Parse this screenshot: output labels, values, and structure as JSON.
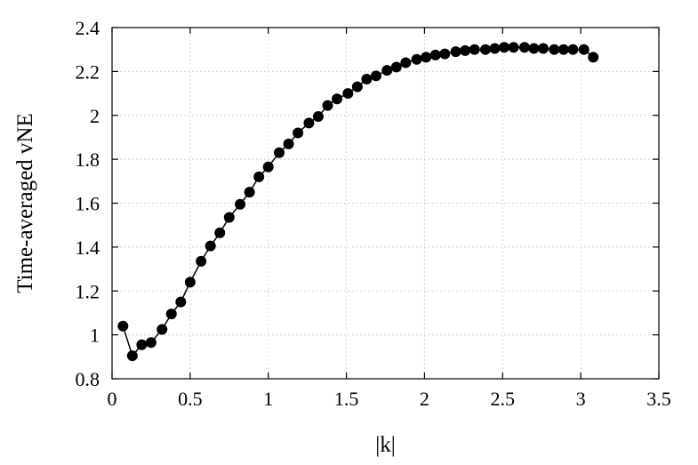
{
  "chart_data": {
    "type": "line",
    "title": "",
    "xlabel": "|k|",
    "ylabel": "Time-averaged vNE",
    "xlim": [
      0,
      3.5
    ],
    "ylim": [
      0.8,
      2.4
    ],
    "xticks": [
      0,
      0.5,
      1,
      1.5,
      2,
      2.5,
      3,
      3.5
    ],
    "xtick_labels": [
      "0",
      "0.5",
      "1",
      "1.5",
      "2",
      "2.5",
      "3",
      "3.5"
    ],
    "yticks": [
      0.8,
      1,
      1.2,
      1.4,
      1.6,
      1.8,
      2,
      2.2,
      2.4
    ],
    "ytick_labels": [
      "0.8",
      "1",
      "1.2",
      "1.4",
      "1.6",
      "1.8",
      "2",
      "2.2",
      "2.4"
    ],
    "grid": true,
    "legend": "none",
    "marker": "filled-circle",
    "series": [
      {
        "color": "#000000",
        "x": [
          0.07,
          0.13,
          0.19,
          0.25,
          0.32,
          0.38,
          0.44,
          0.5,
          0.57,
          0.63,
          0.69,
          0.75,
          0.82,
          0.88,
          0.94,
          1.0,
          1.07,
          1.13,
          1.19,
          1.26,
          1.32,
          1.38,
          1.44,
          1.51,
          1.57,
          1.63,
          1.69,
          1.76,
          1.82,
          1.88,
          1.95,
          2.01,
          2.07,
          2.13,
          2.2,
          2.26,
          2.32,
          2.39,
          2.45,
          2.51,
          2.57,
          2.64,
          2.7,
          2.76,
          2.83,
          2.89,
          2.95,
          3.02,
          3.08
        ],
        "y": [
          1.04,
          0.905,
          0.955,
          0.965,
          1.025,
          1.095,
          1.15,
          1.24,
          1.335,
          1.405,
          1.465,
          1.535,
          1.595,
          1.65,
          1.72,
          1.765,
          1.83,
          1.87,
          1.92,
          1.965,
          1.995,
          2.045,
          2.075,
          2.1,
          2.13,
          2.165,
          2.18,
          2.205,
          2.22,
          2.24,
          2.255,
          2.265,
          2.275,
          2.28,
          2.29,
          2.295,
          2.3,
          2.3,
          2.305,
          2.31,
          2.31,
          2.31,
          2.305,
          2.305,
          2.3,
          2.3,
          2.3,
          2.3,
          2.265
        ]
      }
    ]
  }
}
